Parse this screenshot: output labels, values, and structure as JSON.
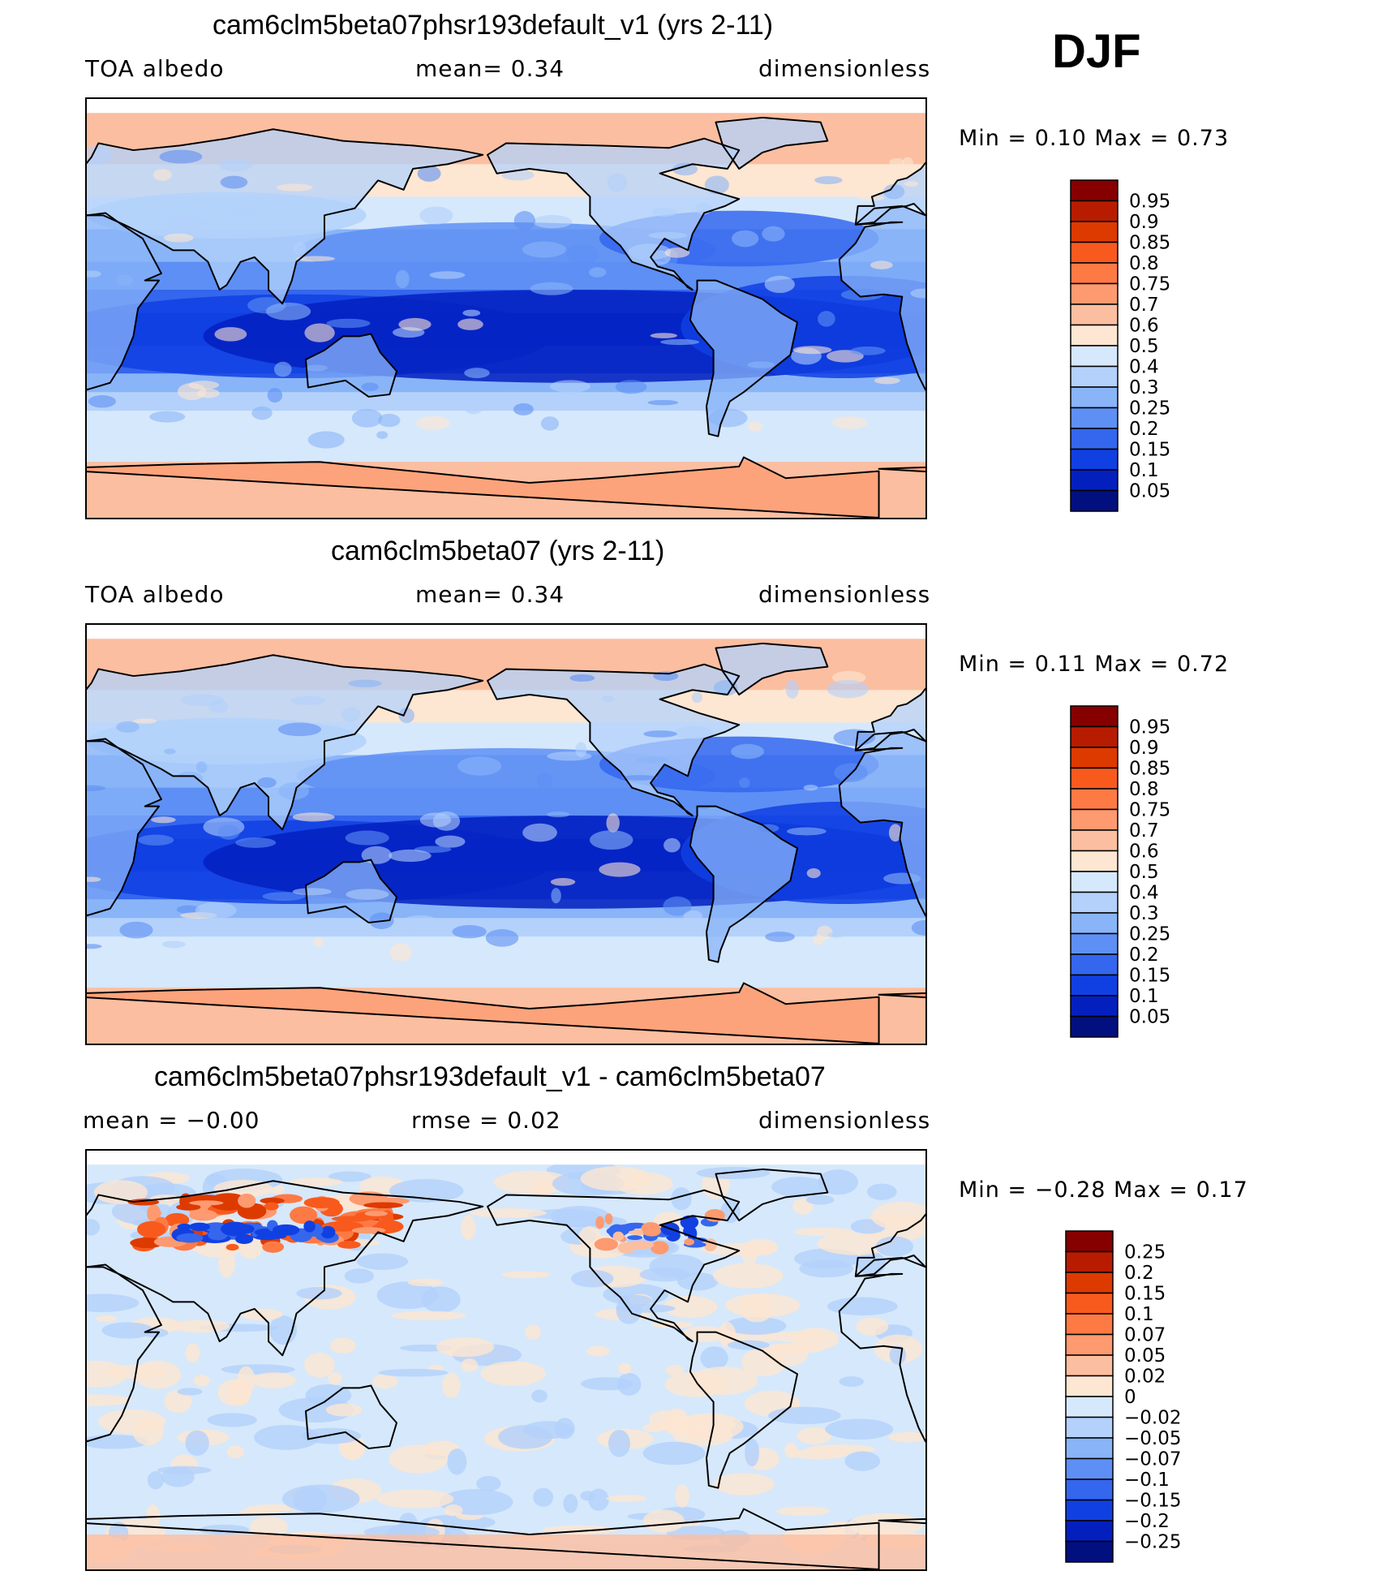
{
  "season": "DJF",
  "panels": [
    {
      "title": "cam6clm5beta07phsr193default_v1 (yrs 2-11)",
      "left_label": "TOA  albedo",
      "center_label": "mean=    0.34",
      "right_label": "dimensionless",
      "minmax": "Min  =      0.10  Max  =      0.73",
      "kind": "field"
    },
    {
      "title": "cam6clm5beta07 (yrs 2-11)",
      "left_label": "TOA  albedo",
      "center_label": "mean=    0.34",
      "right_label": "dimensionless",
      "minmax": "Min  =      0.11  Max  =      0.72",
      "kind": "field"
    },
    {
      "title": "cam6clm5beta07phsr193default_v1 - cam6clm5beta07",
      "left_label": "mean  =    −0.00",
      "center_label": "rmse  =     0.02",
      "right_label": "dimensionless",
      "minmax": "Min  =    −0.28  Max  =      0.17",
      "kind": "diff"
    }
  ],
  "colorbars": {
    "field": {
      "labels": [
        "0.95",
        "0.9",
        "0.85",
        "0.8",
        "0.75",
        "0.7",
        "0.6",
        "0.5",
        "0.4",
        "0.3",
        "0.25",
        "0.2",
        "0.15",
        "0.1",
        "0.05"
      ],
      "colors": [
        "#870000",
        "#b81c00",
        "#dd3a00",
        "#f85a1e",
        "#fe7a45",
        "#fd9a6f",
        "#fcbea0",
        "#fde6d2",
        "#d6e8fb",
        "#b3d1fb",
        "#89b4f8",
        "#5e8ff4",
        "#3466ee",
        "#1140e2",
        "#0320bf",
        "#020f7f"
      ]
    },
    "diff": {
      "labels": [
        "0.25",
        "0.2",
        "0.15",
        "0.1",
        "0.07",
        "0.05",
        "0.02",
        "0",
        "−0.02",
        "−0.05",
        "−0.07",
        "−0.1",
        "−0.15",
        "−0.2",
        "−0.25"
      ],
      "colors": [
        "#870000",
        "#b81c00",
        "#dd3a00",
        "#f85a1e",
        "#fe7a45",
        "#fd9a6f",
        "#fcbea0",
        "#fde6d2",
        "#d6e8fb",
        "#b3d1fb",
        "#89b4f8",
        "#5e8ff4",
        "#3466ee",
        "#1140e2",
        "#0320bf",
        "#020f7f"
      ]
    }
  }
}
